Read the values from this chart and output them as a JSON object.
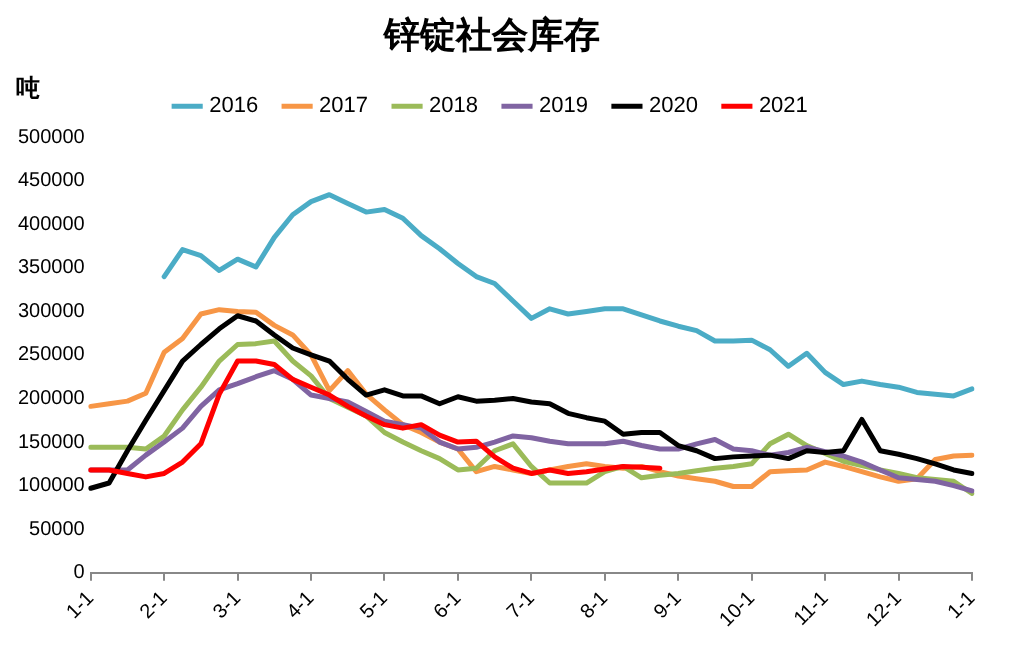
{
  "chart_data": {
    "type": "line",
    "title": "锌锭社会库存",
    "ylabel": "吨",
    "categories": [
      "1-1",
      null,
      null,
      null,
      "2-1",
      null,
      null,
      null,
      "3-1",
      null,
      null,
      null,
      "4-1",
      null,
      null,
      null,
      "5-1",
      null,
      null,
      null,
      "6-1",
      null,
      null,
      null,
      "7-1",
      null,
      null,
      null,
      "8-1",
      null,
      null,
      null,
      "9-1",
      null,
      null,
      null,
      "10-1",
      null,
      null,
      null,
      "11-1",
      null,
      null,
      null,
      "12-1",
      null,
      null,
      null,
      "1-1"
    ],
    "ylim": [
      0,
      500000
    ],
    "yticks": [
      0,
      50000,
      100000,
      150000,
      200000,
      250000,
      300000,
      350000,
      400000,
      450000,
      500000
    ],
    "grid": false,
    "legend": "top",
    "marker": "none",
    "line_style": "solid",
    "series": [
      {
        "name": "2016",
        "color": "#4bacc6",
        "values": [
          null,
          null,
          null,
          null,
          340000,
          371000,
          364000,
          347000,
          360000,
          351000,
          385000,
          411000,
          426000,
          434000,
          424000,
          414000,
          417000,
          407000,
          387000,
          372000,
          355000,
          340000,
          332000,
          312000,
          292000,
          303000,
          297000,
          300000,
          303000,
          303000,
          296000,
          289000,
          283000,
          278000,
          266000,
          266000,
          267000,
          256000,
          237000,
          252000,
          230000,
          216000,
          220000,
          216000,
          213000,
          207000,
          205000,
          203000,
          211000
        ]
      },
      {
        "name": "2017",
        "color": "#f79646",
        "values": [
          191000,
          194000,
          197000,
          206000,
          253000,
          269000,
          297000,
          302000,
          300000,
          299000,
          284000,
          273000,
          250000,
          209000,
          232000,
          205000,
          187000,
          170000,
          161000,
          150000,
          142000,
          116000,
          122000,
          118000,
          114000,
          118000,
          122000,
          125000,
          122000,
          120000,
          122000,
          116000,
          111000,
          108000,
          105000,
          99000,
          99000,
          116000,
          117000,
          118000,
          127000,
          122000,
          116000,
          110000,
          105000,
          108000,
          130000,
          134000,
          135000
        ]
      },
      {
        "name": "2018",
        "color": "#9bbb59",
        "values": [
          144000,
          144000,
          144000,
          142000,
          157000,
          187000,
          213000,
          243000,
          262000,
          263000,
          266000,
          243000,
          226000,
          200000,
          190000,
          180000,
          161000,
          150000,
          140000,
          131000,
          118000,
          120000,
          140000,
          148000,
          122000,
          103000,
          103000,
          103000,
          116000,
          122000,
          109000,
          112000,
          114000,
          117000,
          120000,
          122000,
          125000,
          148000,
          159000,
          146000,
          137000,
          128000,
          123000,
          118000,
          114000,
          109000,
          107000,
          105000,
          91000
        ]
      },
      {
        "name": "2019",
        "color": "#8064a2",
        "values": [
          118000,
          118000,
          118000,
          135000,
          150000,
          166000,
          191000,
          210000,
          217000,
          225000,
          232000,
          222000,
          204000,
          200000,
          196000,
          185000,
          174000,
          170000,
          166000,
          150000,
          142000,
          144000,
          150000,
          157000,
          155000,
          151000,
          148000,
          148000,
          148000,
          151000,
          146000,
          142000,
          142000,
          148000,
          153000,
          142000,
          140000,
          135000,
          138000,
          144000,
          139000,
          134000,
          127000,
          118000,
          109000,
          107000,
          105000,
          100000,
          94000
        ]
      },
      {
        "name": "2020",
        "color": "#000000",
        "values": [
          97000,
          103000,
          140000,
          175000,
          209000,
          243000,
          262000,
          280000,
          295000,
          289000,
          273000,
          258000,
          250000,
          243000,
          222000,
          204000,
          210000,
          203000,
          203000,
          194000,
          202000,
          197000,
          198000,
          200000,
          196000,
          194000,
          183000,
          178000,
          174000,
          159000,
          161000,
          161000,
          146000,
          140000,
          131000,
          133000,
          134000,
          135000,
          131000,
          140000,
          138000,
          140000,
          176000,
          140000,
          136000,
          131000,
          125000,
          118000,
          114000
        ]
      },
      {
        "name": "2021",
        "color": "#ff0000",
        "values": [
          118000,
          118000,
          114000,
          110000,
          114000,
          127000,
          148000,
          205000,
          243000,
          243000,
          239000,
          222000,
          213000,
          204000,
          191000,
          180000,
          170000,
          166000,
          170000,
          158000,
          150000,
          151000,
          133000,
          120000,
          114000,
          118000,
          114000,
          116000,
          119000,
          122000,
          121000,
          120000,
          null,
          null,
          null,
          null,
          null,
          null,
          null,
          null,
          null,
          null,
          null,
          null,
          null,
          null,
          null,
          null,
          null
        ]
      }
    ]
  }
}
